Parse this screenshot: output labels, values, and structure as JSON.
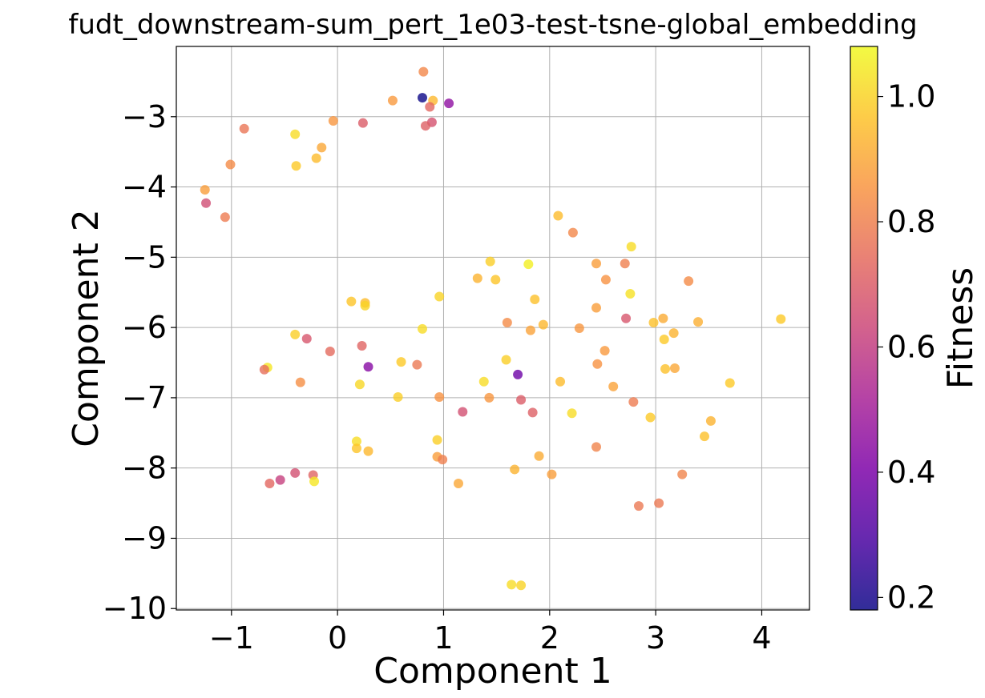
{
  "chart_data": {
    "type": "scatter",
    "title": "fudt_downstream-sum_pert_1e03-test-tsne-global_embedding",
    "xlabel": "Component 1",
    "ylabel": "Component 2",
    "xlim": [
      -1.52,
      4.45
    ],
    "ylim": [
      -10.02,
      -2.0
    ],
    "xticks": [
      -1,
      0,
      1,
      2,
      3,
      4
    ],
    "yticks": [
      -10,
      -9,
      -8,
      -7,
      -6,
      -5,
      -4,
      -3
    ],
    "grid": true,
    "colorbar": {
      "label": "Fitness",
      "colormap": "plasma",
      "range": [
        0.18,
        1.08
      ],
      "ticks": [
        0.2,
        0.4,
        0.6,
        0.8,
        1.0
      ],
      "tick_labels": [
        "0.2",
        "0.4",
        "0.6",
        "0.8",
        "1.0"
      ]
    },
    "points": [
      {
        "x": 0.81,
        "y": -2.36,
        "c": 0.82
      },
      {
        "x": 0.8,
        "y": -2.73,
        "c": 0.18
      },
      {
        "x": 0.9,
        "y": -2.77,
        "c": 0.94
      },
      {
        "x": 1.05,
        "y": -2.81,
        "c": 0.45
      },
      {
        "x": 0.87,
        "y": -2.86,
        "c": 0.73
      },
      {
        "x": 0.52,
        "y": -2.77,
        "c": 0.87
      },
      {
        "x": 0.89,
        "y": -3.08,
        "c": 0.67
      },
      {
        "x": 0.83,
        "y": -3.13,
        "c": 0.71
      },
      {
        "x": 0.24,
        "y": -3.09,
        "c": 0.7
      },
      {
        "x": -0.04,
        "y": -3.06,
        "c": 0.86
      },
      {
        "x": -0.88,
        "y": -3.17,
        "c": 0.77
      },
      {
        "x": -0.4,
        "y": -3.25,
        "c": 1.02
      },
      {
        "x": -0.15,
        "y": -3.44,
        "c": 0.9
      },
      {
        "x": -0.2,
        "y": -3.59,
        "c": 0.95
      },
      {
        "x": -1.01,
        "y": -3.68,
        "c": 0.83
      },
      {
        "x": -0.39,
        "y": -3.7,
        "c": 0.98
      },
      {
        "x": -1.25,
        "y": -4.04,
        "c": 0.88
      },
      {
        "x": -1.24,
        "y": -4.23,
        "c": 0.65
      },
      {
        "x": -1.06,
        "y": -4.43,
        "c": 0.79
      },
      {
        "x": 2.08,
        "y": -4.41,
        "c": 0.95
      },
      {
        "x": 2.22,
        "y": -4.65,
        "c": 0.82
      },
      {
        "x": 2.77,
        "y": -4.85,
        "c": 1.02
      },
      {
        "x": 1.44,
        "y": -5.06,
        "c": 0.99
      },
      {
        "x": 1.8,
        "y": -5.1,
        "c": 1.06
      },
      {
        "x": 2.44,
        "y": -5.09,
        "c": 0.88
      },
      {
        "x": 2.71,
        "y": -5.09,
        "c": 0.8
      },
      {
        "x": 1.32,
        "y": -5.3,
        "c": 0.93
      },
      {
        "x": 1.49,
        "y": -5.32,
        "c": 0.97
      },
      {
        "x": 2.53,
        "y": -5.32,
        "c": 0.85
      },
      {
        "x": 3.31,
        "y": -5.34,
        "c": 0.83
      },
      {
        "x": 2.76,
        "y": -5.52,
        "c": 1.03
      },
      {
        "x": 0.96,
        "y": -5.56,
        "c": 1.0
      },
      {
        "x": 1.86,
        "y": -5.6,
        "c": 0.96
      },
      {
        "x": 0.13,
        "y": -5.63,
        "c": 0.97
      },
      {
        "x": 0.26,
        "y": -5.65,
        "c": 0.95
      },
      {
        "x": 0.26,
        "y": -5.69,
        "c": 1.0
      },
      {
        "x": 2.44,
        "y": -5.72,
        "c": 0.88
      },
      {
        "x": 2.72,
        "y": -5.87,
        "c": 0.68
      },
      {
        "x": 3.07,
        "y": -5.87,
        "c": 0.91
      },
      {
        "x": 4.18,
        "y": -5.88,
        "c": 0.98
      },
      {
        "x": 1.6,
        "y": -5.93,
        "c": 0.83
      },
      {
        "x": 2.98,
        "y": -5.93,
        "c": 0.96
      },
      {
        "x": 3.4,
        "y": -5.92,
        "c": 0.92
      },
      {
        "x": 1.94,
        "y": -5.96,
        "c": 0.94
      },
      {
        "x": 0.8,
        "y": -6.02,
        "c": 1.02
      },
      {
        "x": 2.28,
        "y": -6.01,
        "c": 0.86
      },
      {
        "x": 1.82,
        "y": -6.04,
        "c": 0.89
      },
      {
        "x": 3.17,
        "y": -6.08,
        "c": 0.93
      },
      {
        "x": -0.4,
        "y": -6.1,
        "c": 0.99
      },
      {
        "x": -0.29,
        "y": -6.16,
        "c": 0.68
      },
      {
        "x": 3.08,
        "y": -6.17,
        "c": 0.98
      },
      {
        "x": 0.23,
        "y": -6.26,
        "c": 0.72
      },
      {
        "x": -0.07,
        "y": -6.34,
        "c": 0.74
      },
      {
        "x": 2.52,
        "y": -6.33,
        "c": 0.87
      },
      {
        "x": 1.59,
        "y": -6.46,
        "c": 0.99
      },
      {
        "x": 0.6,
        "y": -6.49,
        "c": 0.98
      },
      {
        "x": 0.75,
        "y": -6.53,
        "c": 0.78
      },
      {
        "x": 2.45,
        "y": -6.52,
        "c": 0.85
      },
      {
        "x": 0.29,
        "y": -6.56,
        "c": 0.43
      },
      {
        "x": -0.66,
        "y": -6.57,
        "c": 1.04
      },
      {
        "x": -0.69,
        "y": -6.6,
        "c": 0.75
      },
      {
        "x": 3.09,
        "y": -6.59,
        "c": 0.96
      },
      {
        "x": 3.18,
        "y": -6.58,
        "c": 0.9
      },
      {
        "x": 1.7,
        "y": -6.67,
        "c": 0.37
      },
      {
        "x": 1.38,
        "y": -6.77,
        "c": 1.02
      },
      {
        "x": 2.1,
        "y": -6.77,
        "c": 0.95
      },
      {
        "x": -0.35,
        "y": -6.78,
        "c": 0.84
      },
      {
        "x": 3.7,
        "y": -6.79,
        "c": 0.98
      },
      {
        "x": 0.21,
        "y": -6.81,
        "c": 1.01
      },
      {
        "x": 2.6,
        "y": -6.84,
        "c": 0.89
      },
      {
        "x": 0.57,
        "y": -6.99,
        "c": 0.99
      },
      {
        "x": 0.96,
        "y": -6.99,
        "c": 0.85
      },
      {
        "x": 1.43,
        "y": -7.0,
        "c": 0.86
      },
      {
        "x": 1.73,
        "y": -7.03,
        "c": 0.7
      },
      {
        "x": 2.79,
        "y": -7.06,
        "c": 0.79
      },
      {
        "x": 1.84,
        "y": -7.21,
        "c": 0.71
      },
      {
        "x": 1.18,
        "y": -7.2,
        "c": 0.66
      },
      {
        "x": 2.21,
        "y": -7.22,
        "c": 1.02
      },
      {
        "x": 2.95,
        "y": -7.28,
        "c": 0.98
      },
      {
        "x": 3.52,
        "y": -7.33,
        "c": 0.93
      },
      {
        "x": 3.46,
        "y": -7.55,
        "c": 0.96
      },
      {
        "x": 0.94,
        "y": -7.6,
        "c": 0.99
      },
      {
        "x": 0.18,
        "y": -7.62,
        "c": 1.02
      },
      {
        "x": 0.18,
        "y": -7.72,
        "c": 0.97
      },
      {
        "x": 2.44,
        "y": -7.7,
        "c": 0.81
      },
      {
        "x": 0.29,
        "y": -7.76,
        "c": 0.94
      },
      {
        "x": 1.9,
        "y": -7.83,
        "c": 0.91
      },
      {
        "x": 0.94,
        "y": -7.84,
        "c": 0.88
      },
      {
        "x": 0.99,
        "y": -7.88,
        "c": 0.8
      },
      {
        "x": 1.67,
        "y": -8.02,
        "c": 0.93
      },
      {
        "x": -0.4,
        "y": -8.07,
        "c": 0.66
      },
      {
        "x": -0.23,
        "y": -8.1,
        "c": 0.72
      },
      {
        "x": 2.02,
        "y": -8.09,
        "c": 0.88
      },
      {
        "x": 3.25,
        "y": -8.09,
        "c": 0.81
      },
      {
        "x": -0.54,
        "y": -8.17,
        "c": 0.61
      },
      {
        "x": -0.22,
        "y": -8.19,
        "c": 1.04
      },
      {
        "x": -0.64,
        "y": -8.22,
        "c": 0.73
      },
      {
        "x": 1.14,
        "y": -8.22,
        "c": 0.9
      },
      {
        "x": 2.84,
        "y": -8.54,
        "c": 0.78
      },
      {
        "x": 3.03,
        "y": -8.5,
        "c": 0.78
      },
      {
        "x": 1.64,
        "y": -9.66,
        "c": 1.02
      },
      {
        "x": 1.73,
        "y": -9.67,
        "c": 1.0
      }
    ]
  }
}
